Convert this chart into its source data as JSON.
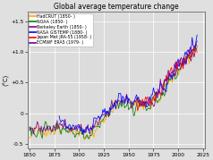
{
  "title": "Global average temperature change",
  "ylabel": "(°C)",
  "ylim": [
    -0.58,
    1.65
  ],
  "xlim": [
    1848,
    2027
  ],
  "yticks": [
    -0.5,
    0,
    0.5,
    1.0,
    1.5
  ],
  "ytick_labels": [
    "-0.5",
    "0",
    "+0.5",
    "+1.0",
    "+1.5"
  ],
  "xticks": [
    1850,
    1875,
    1900,
    1925,
    1950,
    1975,
    2000,
    2025
  ],
  "background_color": "#e0e0e0",
  "plot_bg": "#dcdcdc",
  "grid_color": "#ffffff",
  "legend": [
    {
      "label": "HadCRUT (1850- )",
      "color": "#FFA500"
    },
    {
      "label": "NOAA (1850- )",
      "color": "#008000"
    },
    {
      "label": "Berkeley Earth (1850- )",
      "color": "#800080"
    },
    {
      "label": "NASA GISTEMP (1880- )",
      "color": "#0000FF"
    },
    {
      "label": "Japan Met JRA-55 (1958- )",
      "color": "#FF0000"
    },
    {
      "label": "ECMWF ERA5 (1979- )",
      "color": "#6600AA"
    }
  ],
  "line_width": 0.55
}
